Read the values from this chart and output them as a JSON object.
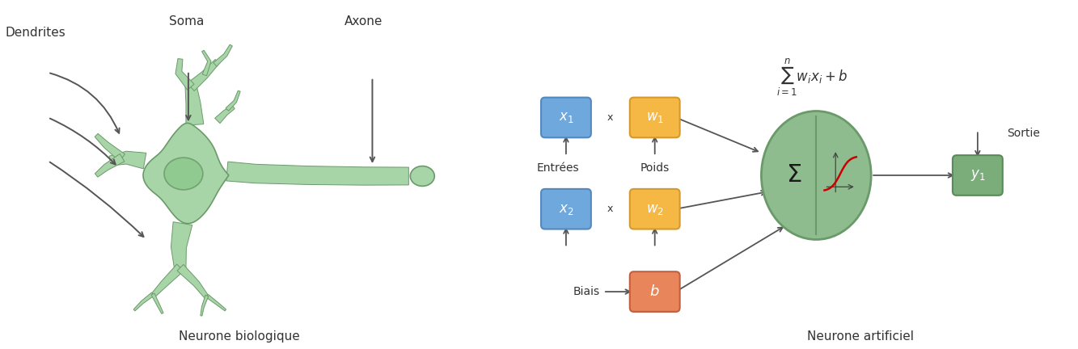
{
  "background_color": "#ffffff",
  "neuron_body_color": "#a8d5a8",
  "neuron_body_edge": "#6a9a6a",
  "neuron_nucleus_color": "#8ec98e",
  "blue_box_color": "#6fa8dc",
  "blue_box_edge": "#5588bb",
  "yellow_box_color": "#f6b844",
  "yellow_box_edge": "#d49a30",
  "orange_box_color": "#e8855a",
  "orange_box_edge": "#c06040",
  "green_box_color": "#7aad7a",
  "green_box_edge": "#5a8a5a",
  "green_circle_color": "#8fbc8f",
  "green_circle_edge": "#6a9a6a",
  "text_color": "#333333",
  "arrow_color": "#555555",
  "sigmoid_color": "#cc0000",
  "label_neurone_bio": "Neurone biologique",
  "label_neurone_art": "Neurone artificiel",
  "label_dendrites": "Dendrites",
  "label_soma": "Soma",
  "label_axone": "Axone",
  "label_entrees": "Entrées",
  "label_poids": "Poids",
  "label_biais": "Biais",
  "label_sortie": "Sortie",
  "label_x1": "$x_1$",
  "label_x2": "$x_2$",
  "label_w1": "$w_1$",
  "label_w2": "$w_2$",
  "label_b": "$b$",
  "label_y1": "$y_1$",
  "label_sigma": "$\\Sigma$",
  "label_formula": "$\\sum_{i=1}^{n} w_i x_i + b$",
  "fig_width": 13.33,
  "fig_height": 4.32
}
